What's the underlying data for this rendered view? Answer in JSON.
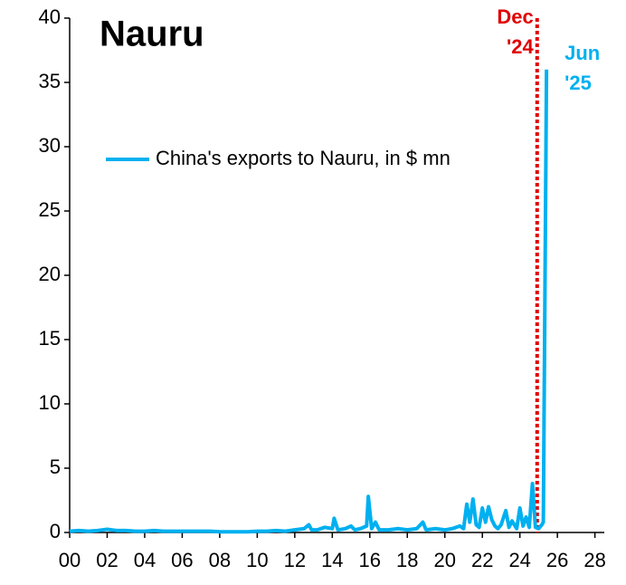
{
  "chart_data": {
    "type": "line",
    "title": "Nauru",
    "x": [
      0,
      0.5,
      1,
      1.5,
      2,
      2.5,
      3,
      3.5,
      4,
      4.5,
      5,
      5.5,
      6,
      6.5,
      7,
      7.5,
      8,
      8.5,
      9,
      9.5,
      10,
      10.5,
      11,
      11.5,
      12,
      12.5,
      12.75,
      12.9,
      13.2,
      13.6,
      14.0,
      14.1,
      14.3,
      14.7,
      15.0,
      15.2,
      15.5,
      15.83,
      15.92,
      16.1,
      16.3,
      16.5,
      17,
      17.5,
      18,
      18.5,
      18.83,
      19.0,
      19.5,
      20,
      20.4,
      20.8,
      21.0,
      21.17,
      21.33,
      21.5,
      21.67,
      21.83,
      22.0,
      22.17,
      22.33,
      22.5,
      22.67,
      22.83,
      23.0,
      23.25,
      23.42,
      23.58,
      23.83,
      24.0,
      24.17,
      24.33,
      24.5,
      24.67,
      24.83,
      25.0,
      25.17,
      25.25,
      25.42
    ],
    "series": [
      {
        "name": "China's exports to Nauru, in $ mn",
        "color": "#00b0f0",
        "values": [
          0.1,
          0.15,
          0.1,
          0.15,
          0.25,
          0.15,
          0.15,
          0.1,
          0.1,
          0.15,
          0.1,
          0.1,
          0.1,
          0.1,
          0.1,
          0.1,
          0.05,
          0.05,
          0.05,
          0.05,
          0.1,
          0.1,
          0.15,
          0.1,
          0.2,
          0.3,
          0.6,
          0.2,
          0.2,
          0.4,
          0.3,
          1.1,
          0.2,
          0.3,
          0.5,
          0.2,
          0.3,
          0.5,
          2.8,
          0.3,
          0.8,
          0.2,
          0.2,
          0.3,
          0.2,
          0.3,
          0.8,
          0.2,
          0.3,
          0.2,
          0.3,
          0.5,
          0.3,
          2.2,
          0.8,
          2.6,
          0.6,
          0.4,
          1.9,
          0.8,
          2.0,
          1.0,
          0.5,
          0.3,
          0.6,
          1.7,
          0.4,
          0.9,
          0.3,
          1.9,
          0.5,
          1.2,
          0.4,
          3.8,
          0.4,
          0.3,
          0.6,
          0.8,
          36
        ]
      }
    ],
    "xlim": [
      0,
      28.5
    ],
    "xticks": [
      {
        "value": 0,
        "label": "00"
      },
      {
        "value": 2,
        "label": "02"
      },
      {
        "value": 4,
        "label": "04"
      },
      {
        "value": 6,
        "label": "06"
      },
      {
        "value": 8,
        "label": "08"
      },
      10,
      12,
      14,
      16,
      18,
      20,
      22,
      24,
      26,
      28
    ],
    "ylim": [
      0,
      40
    ],
    "yticks": [
      0,
      5,
      10,
      15,
      20,
      25,
      30,
      35,
      40
    ],
    "vline": {
      "x": 24.92,
      "color": "#e00000",
      "label": [
        "Dec",
        "'24"
      ]
    },
    "end_label": {
      "lines": [
        "Jun",
        "'25"
      ],
      "color": "#00b0f0"
    }
  }
}
